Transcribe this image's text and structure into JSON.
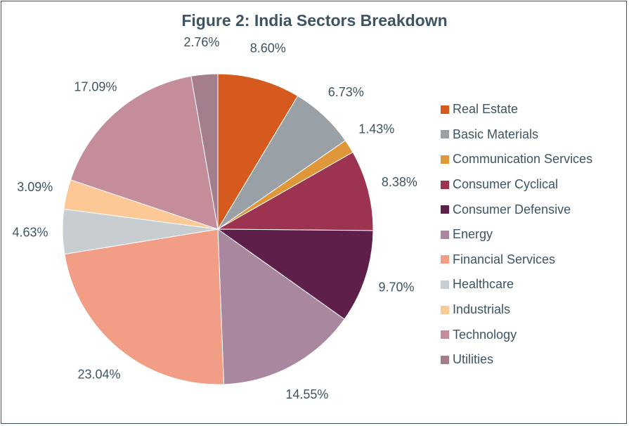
{
  "chart_data": {
    "type": "pie",
    "title": "Figure 2: India Sectors Breakdown",
    "legend_position": "right",
    "slices": [
      {
        "label": "Real Estate",
        "value": 8.6,
        "value_label": "8.60%",
        "color": "#d65a1e"
      },
      {
        "label": "Basic Materials",
        "value": 6.73,
        "value_label": "6.73%",
        "color": "#99a1a6"
      },
      {
        "label": "Communication Services",
        "value": 1.43,
        "value_label": "1.43%",
        "color": "#e0973a"
      },
      {
        "label": "Consumer Cyclical",
        "value": 8.38,
        "value_label": "8.38%",
        "color": "#9c3350"
      },
      {
        "label": "Consumer Defensive",
        "value": 9.7,
        "value_label": "9.70%",
        "color": "#5e1f4a"
      },
      {
        "label": "Energy",
        "value": 14.55,
        "value_label": "14.55%",
        "color": "#a8879f"
      },
      {
        "label": "Financial Services",
        "value": 23.04,
        "value_label": "23.04%",
        "color": "#f29e86"
      },
      {
        "label": "Healthcare",
        "value": 4.63,
        "value_label": "4.63%",
        "color": "#c7cdd1"
      },
      {
        "label": "Industrials",
        "value": 3.09,
        "value_label": "3.09%",
        "color": "#fbc896"
      },
      {
        "label": "Technology",
        "value": 17.09,
        "value_label": "17.09%",
        "color": "#c58c9a"
      },
      {
        "label": "Utilities",
        "value": 2.76,
        "value_label": "2.76%",
        "color": "#a47e8c"
      }
    ]
  }
}
